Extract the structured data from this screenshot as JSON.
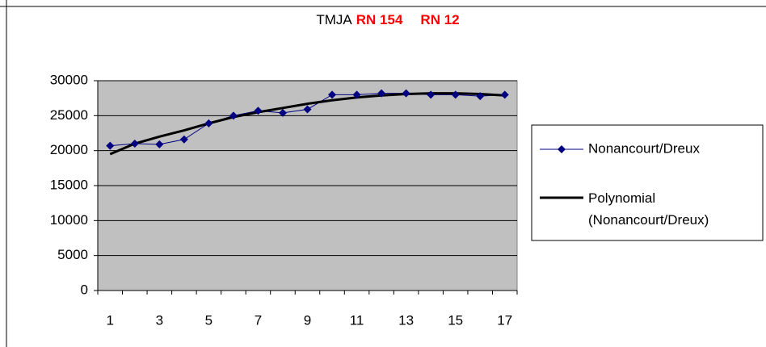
{
  "chart_data": {
    "type": "line",
    "title_parts": [
      "TMJA",
      "RN 154",
      "RN 12"
    ],
    "title_colors": [
      "#000000",
      "#ff0000",
      "#ff0000"
    ],
    "categories": [
      1,
      null,
      3,
      null,
      5,
      null,
      7,
      null,
      9,
      null,
      11,
      null,
      13,
      null,
      15,
      null,
      17
    ],
    "series": [
      {
        "name": "Nonancourt/Dreux",
        "color": "#000080",
        "marker": "diamond",
        "values": [
          20700,
          21000,
          20900,
          21600,
          23900,
          25000,
          25700,
          25400,
          25900,
          28000,
          28000,
          28200,
          28200,
          28000,
          28000,
          27800,
          28000
        ]
      },
      {
        "name": "Polynomial (Nonancourt/Dreux)",
        "color": "#000000",
        "values": [
          19500,
          21000,
          22000,
          22900,
          23900,
          24800,
          25500,
          26100,
          26700,
          27200,
          27600,
          27900,
          28100,
          28200,
          28200,
          28100,
          27900
        ]
      }
    ],
    "ylim": [
      0,
      30000
    ],
    "yticks": [
      0,
      5000,
      10000,
      15000,
      20000,
      25000,
      30000
    ],
    "grid": true,
    "plot_color": "#c0c0c0",
    "legend": "right"
  }
}
